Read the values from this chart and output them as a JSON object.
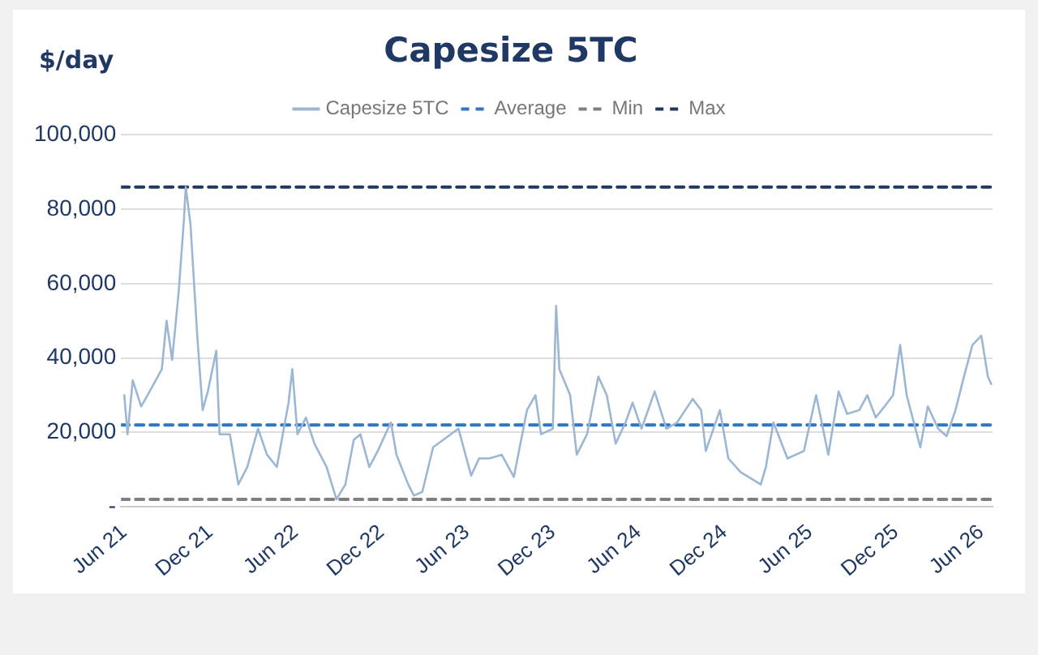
{
  "chart_data": {
    "type": "line",
    "title": "Capesize 5TC",
    "ylabel": "$/day",
    "xlim": [
      "2021-05-25",
      "2026-06-25"
    ],
    "xticks": [
      {
        "value": "2021-06-01",
        "label": "Jun 21"
      },
      {
        "value": "2021-12-01",
        "label": "Dec 21"
      },
      {
        "value": "2022-06-01",
        "label": "Jun 22"
      },
      {
        "value": "2022-12-01",
        "label": "Dec 22"
      },
      {
        "value": "2023-06-01",
        "label": "Jun 23"
      },
      {
        "value": "2023-12-01",
        "label": "Dec 23"
      },
      {
        "value": "2024-06-01",
        "label": "Jun 24"
      },
      {
        "value": "2024-12-01",
        "label": "Dec 24"
      },
      {
        "value": "2025-06-01",
        "label": "Jun 25"
      },
      {
        "value": "2025-12-01",
        "label": "Dec 25"
      },
      {
        "value": "2026-06-01",
        "label": "Jun 26"
      }
    ],
    "ylim": [
      0,
      100000
    ],
    "yticks": [
      {
        "value": 0,
        "label": "-"
      },
      {
        "value": 20000,
        "label": "20,000"
      },
      {
        "value": 40000,
        "label": "40,000"
      },
      {
        "value": 60000,
        "label": "60,000"
      },
      {
        "value": 80000,
        "label": "80,000"
      },
      {
        "value": 100000,
        "label": "100,000"
      }
    ],
    "grid": "y",
    "legend": "top",
    "marker": "none",
    "x": [
      "2021-06-01",
      "2021-06-08",
      "2021-06-19",
      "2021-07-07",
      "2021-07-25",
      "2021-08-20",
      "2021-08-30",
      "2021-09-11",
      "2021-09-25",
      "2021-10-06",
      "2021-10-10",
      "2021-10-20",
      "2021-11-04",
      "2021-11-15",
      "2021-11-26",
      "2021-12-14",
      "2021-12-21",
      "2022-01-12",
      "2022-01-30",
      "2022-02-18",
      "2022-03-13",
      "2022-04-01",
      "2022-04-22",
      "2022-05-17",
      "2022-05-25",
      "2022-06-05",
      "2022-06-23",
      "2022-07-11",
      "2022-08-06",
      "2022-08-27",
      "2022-09-15",
      "2022-10-03",
      "2022-10-17",
      "2022-11-05",
      "2022-11-23",
      "2022-12-21",
      "2023-01-02",
      "2023-01-27",
      "2023-02-08",
      "2023-02-26",
      "2023-03-21",
      "2023-05-14",
      "2023-06-10",
      "2023-06-27",
      "2023-07-19",
      "2023-08-14",
      "2023-09-09",
      "2023-10-07",
      "2023-10-25",
      "2023-11-06",
      "2023-12-01",
      "2023-12-08",
      "2023-12-15",
      "2024-01-07",
      "2024-01-21",
      "2024-02-12",
      "2024-03-07",
      "2024-03-25",
      "2024-04-13",
      "2024-05-04",
      "2024-05-19",
      "2024-06-07",
      "2024-07-05",
      "2024-07-30",
      "2024-08-22",
      "2024-09-24",
      "2024-10-12",
      "2024-10-22",
      "2024-11-21",
      "2024-12-09",
      "2025-01-04",
      "2025-02-16",
      "2025-02-27",
      "2025-03-15",
      "2025-04-14",
      "2025-05-19",
      "2025-06-14",
      "2025-07-10",
      "2025-08-01",
      "2025-08-19",
      "2025-09-14",
      "2025-10-01",
      "2025-10-19",
      "2025-11-07",
      "2025-11-25",
      "2025-12-10",
      "2025-12-24",
      "2026-01-22",
      "2026-02-07",
      "2026-03-01",
      "2026-03-19",
      "2026-04-07",
      "2026-04-25",
      "2026-05-13",
      "2026-06-01",
      "2026-06-15",
      "2026-06-22"
    ],
    "series": [
      {
        "name": "Capesize 5TC",
        "color": "#9bb7d4",
        "values": [
          30000,
          19500,
          34000,
          27000,
          31000,
          37000,
          50000,
          39500,
          58000,
          77000,
          86000,
          76000,
          45000,
          26000,
          31000,
          42000,
          19500,
          19500,
          6000,
          10700,
          21000,
          14000,
          10700,
          28000,
          37000,
          19500,
          24000,
          17000,
          10700,
          2000,
          6000,
          18000,
          19500,
          10700,
          15000,
          22700,
          14000,
          6000,
          3000,
          4000,
          16000,
          21000,
          8400,
          13000,
          13000,
          14000,
          8000,
          26000,
          30000,
          19500,
          21000,
          54000,
          37000,
          30000,
          14000,
          19500,
          35000,
          30000,
          17000,
          22700,
          28000,
          21000,
          31000,
          21000,
          22700,
          29000,
          26000,
          15000,
          26000,
          13000,
          9300,
          6000,
          10700,
          22700,
          13000,
          15000,
          30000,
          14000,
          31000,
          25000,
          26000,
          30000,
          24000,
          27000,
          30000,
          43500,
          30000,
          16000,
          27000,
          21000,
          19000,
          26000,
          35000,
          43500,
          46000,
          35000,
          33000
        ]
      }
    ],
    "ref_lines": [
      {
        "axis": "y",
        "value": 22000,
        "label": "Average",
        "color": "#2e75c8",
        "line_style": "dashed"
      },
      {
        "axis": "y",
        "value": 2000,
        "label": "Min",
        "color": "#7f7f7f",
        "line_style": "dashed"
      },
      {
        "axis": "y",
        "value": 86000,
        "label": "Max",
        "color": "#1f3864",
        "line_style": "dashed"
      }
    ]
  }
}
